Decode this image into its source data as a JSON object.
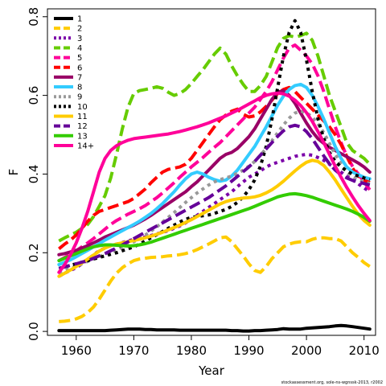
{
  "chart_data": {
    "type": "line",
    "xlabel": "Year",
    "ylabel": "F",
    "xlim": [
      1955,
      2012
    ],
    "ylim": [
      -0.01,
      0.82
    ],
    "x_ticks": [
      1960,
      1970,
      1980,
      1990,
      2000,
      2010
    ],
    "y_ticks": [
      0.0,
      0.2,
      0.4,
      0.6,
      0.8
    ],
    "legend_position": "top-left",
    "grid": false,
    "x": [
      1957,
      1958,
      1959,
      1960,
      1961,
      1962,
      1963,
      1964,
      1965,
      1966,
      1967,
      1968,
      1969,
      1970,
      1971,
      1972,
      1973,
      1974,
      1975,
      1976,
      1977,
      1978,
      1979,
      1980,
      1981,
      1982,
      1983,
      1984,
      1985,
      1986,
      1987,
      1988,
      1989,
      1990,
      1991,
      1992,
      1993,
      1994,
      1995,
      1996,
      1997,
      1998,
      1999,
      2000,
      2001,
      2002,
      2003,
      2004,
      2005,
      2006,
      2007,
      2008,
      2009,
      2010,
      2011
    ],
    "series": [
      {
        "name": "1",
        "color": "#000000",
        "dash": "solid",
        "values": [
          0.002,
          0.002,
          0.002,
          0.002,
          0.002,
          0.002,
          0.002,
          0.002,
          0.002,
          0.003,
          0.004,
          0.005,
          0.006,
          0.006,
          0.006,
          0.005,
          0.005,
          0.004,
          0.004,
          0.004,
          0.004,
          0.003,
          0.003,
          0.003,
          0.003,
          0.003,
          0.003,
          0.003,
          0.003,
          0.003,
          0.002,
          0.002,
          0.001,
          0.001,
          0.002,
          0.002,
          0.003,
          0.004,
          0.005,
          0.007,
          0.006,
          0.006,
          0.006,
          0.008,
          0.009,
          0.01,
          0.011,
          0.012,
          0.014,
          0.015,
          0.014,
          0.012,
          0.01,
          0.008,
          0.006
        ]
      },
      {
        "name": "2",
        "color": "#FFCC00",
        "dash": "dash",
        "values": [
          0.025,
          0.026,
          0.028,
          0.032,
          0.038,
          0.048,
          0.062,
          0.082,
          0.105,
          0.128,
          0.148,
          0.162,
          0.172,
          0.18,
          0.184,
          0.186,
          0.188,
          0.189,
          0.19,
          0.192,
          0.193,
          0.195,
          0.198,
          0.202,
          0.208,
          0.215,
          0.222,
          0.23,
          0.238,
          0.24,
          0.228,
          0.21,
          0.192,
          0.172,
          0.155,
          0.15,
          0.165,
          0.185,
          0.2,
          0.215,
          0.222,
          0.226,
          0.228,
          0.228,
          0.234,
          0.238,
          0.238,
          0.236,
          0.236,
          0.23,
          0.215,
          0.2,
          0.188,
          0.175,
          0.165
        ]
      },
      {
        "name": "3",
        "color": "#7B00A8",
        "dash": "dot",
        "values": [
          0.14,
          0.148,
          0.155,
          0.162,
          0.172,
          0.182,
          0.195,
          0.205,
          0.212,
          0.218,
          0.222,
          0.226,
          0.23,
          0.234,
          0.238,
          0.24,
          0.244,
          0.248,
          0.252,
          0.256,
          0.262,
          0.268,
          0.276,
          0.285,
          0.295,
          0.305,
          0.315,
          0.325,
          0.335,
          0.345,
          0.355,
          0.368,
          0.38,
          0.392,
          0.4,
          0.408,
          0.418,
          0.425,
          0.43,
          0.435,
          0.44,
          0.445,
          0.448,
          0.45,
          0.448,
          0.442,
          0.435,
          0.425,
          0.415,
          0.405,
          0.395,
          0.385,
          0.375,
          0.365,
          0.355
        ]
      },
      {
        "name": "4",
        "color": "#66CC00",
        "dash": "dash",
        "values": [
          0.23,
          0.238,
          0.245,
          0.252,
          0.262,
          0.272,
          0.292,
          0.318,
          0.345,
          0.39,
          0.45,
          0.515,
          0.57,
          0.605,
          0.612,
          0.615,
          0.618,
          0.622,
          0.618,
          0.608,
          0.6,
          0.605,
          0.615,
          0.63,
          0.648,
          0.665,
          0.685,
          0.705,
          0.72,
          0.705,
          0.675,
          0.65,
          0.628,
          0.61,
          0.61,
          0.625,
          0.648,
          0.685,
          0.722,
          0.745,
          0.752,
          0.748,
          0.752,
          0.758,
          0.74,
          0.7,
          0.65,
          0.6,
          0.56,
          0.52,
          0.48,
          0.46,
          0.45,
          0.44,
          0.425
        ]
      },
      {
        "name": "5",
        "color": "#FF0099",
        "dash": "dash",
        "values": [
          0.18,
          0.188,
          0.196,
          0.205,
          0.215,
          0.225,
          0.236,
          0.248,
          0.26,
          0.272,
          0.282,
          0.29,
          0.298,
          0.305,
          0.312,
          0.32,
          0.33,
          0.34,
          0.352,
          0.365,
          0.378,
          0.392,
          0.405,
          0.418,
          0.43,
          0.442,
          0.455,
          0.468,
          0.48,
          0.495,
          0.51,
          0.525,
          0.54,
          0.555,
          0.57,
          0.59,
          0.61,
          0.635,
          0.665,
          0.695,
          0.72,
          0.728,
          0.715,
          0.7,
          0.68,
          0.65,
          0.61,
          0.565,
          0.52,
          0.48,
          0.445,
          0.42,
          0.4,
          0.38,
          0.36
        ]
      },
      {
        "name": "6",
        "color": "#FF0000",
        "dash": "dash",
        "values": [
          0.21,
          0.222,
          0.232,
          0.245,
          0.262,
          0.28,
          0.295,
          0.305,
          0.31,
          0.315,
          0.32,
          0.325,
          0.33,
          0.338,
          0.35,
          0.362,
          0.378,
          0.392,
          0.405,
          0.412,
          0.415,
          0.418,
          0.425,
          0.44,
          0.46,
          0.48,
          0.5,
          0.52,
          0.538,
          0.55,
          0.56,
          0.565,
          0.552,
          0.545,
          0.548,
          0.558,
          0.572,
          0.588,
          0.605,
          0.615,
          0.62,
          0.61,
          0.595,
          0.58,
          0.565,
          0.55,
          0.535,
          0.52,
          0.5,
          0.475,
          0.445,
          0.415,
          0.395,
          0.385,
          0.378
        ]
      },
      {
        "name": "7",
        "color": "#990066",
        "dash": "solid",
        "values": [
          0.195,
          0.198,
          0.202,
          0.206,
          0.212,
          0.218,
          0.225,
          0.232,
          0.24,
          0.246,
          0.252,
          0.258,
          0.264,
          0.27,
          0.278,
          0.286,
          0.295,
          0.305,
          0.315,
          0.325,
          0.335,
          0.345,
          0.355,
          0.368,
          0.38,
          0.395,
          0.41,
          0.425,
          0.44,
          0.45,
          0.455,
          0.465,
          0.48,
          0.495,
          0.515,
          0.54,
          0.565,
          0.59,
          0.608,
          0.612,
          0.6,
          0.58,
          0.555,
          0.53,
          0.508,
          0.49,
          0.478,
          0.468,
          0.46,
          0.452,
          0.444,
          0.436,
          0.428,
          0.418,
          0.405
        ]
      },
      {
        "name": "8",
        "color": "#33CCFF",
        "dash": "solid",
        "values": [
          0.17,
          0.176,
          0.182,
          0.19,
          0.198,
          0.206,
          0.215,
          0.223,
          0.232,
          0.24,
          0.248,
          0.256,
          0.264,
          0.272,
          0.28,
          0.29,
          0.3,
          0.312,
          0.325,
          0.34,
          0.355,
          0.372,
          0.388,
          0.4,
          0.405,
          0.4,
          0.392,
          0.386,
          0.382,
          0.385,
          0.395,
          0.41,
          0.43,
          0.45,
          0.47,
          0.495,
          0.52,
          0.548,
          0.575,
          0.598,
          0.615,
          0.625,
          0.628,
          0.62,
          0.6,
          0.572,
          0.54,
          0.505,
          0.47,
          0.44,
          0.418,
          0.405,
          0.398,
          0.392,
          0.388
        ]
      },
      {
        "name": "9",
        "color": "#999999",
        "dash": "dot",
        "values": [
          0.15,
          0.155,
          0.16,
          0.166,
          0.172,
          0.178,
          0.184,
          0.19,
          0.196,
          0.202,
          0.208,
          0.214,
          0.22,
          0.228,
          0.236,
          0.245,
          0.255,
          0.266,
          0.278,
          0.29,
          0.302,
          0.315,
          0.328,
          0.34,
          0.352,
          0.362,
          0.372,
          0.38,
          0.386,
          0.39,
          0.395,
          0.402,
          0.41,
          0.42,
          0.432,
          0.448,
          0.465,
          0.485,
          0.505,
          0.525,
          0.542,
          0.555,
          0.56,
          0.556,
          0.545,
          0.528,
          0.505,
          0.478,
          0.45,
          0.425,
          0.405,
          0.392,
          0.385,
          0.38,
          0.376
        ]
      },
      {
        "name": "10",
        "color": "#000000",
        "dash": "dot",
        "values": [
          0.16,
          0.164,
          0.168,
          0.172,
          0.176,
          0.18,
          0.184,
          0.188,
          0.192,
          0.196,
          0.2,
          0.205,
          0.21,
          0.215,
          0.222,
          0.23,
          0.238,
          0.246,
          0.254,
          0.262,
          0.27,
          0.278,
          0.285,
          0.29,
          0.292,
          0.294,
          0.296,
          0.3,
          0.305,
          0.31,
          0.318,
          0.328,
          0.342,
          0.36,
          0.385,
          0.42,
          0.47,
          0.54,
          0.62,
          0.7,
          0.76,
          0.79,
          0.76,
          0.69,
          0.61,
          0.54,
          0.49,
          0.455,
          0.432,
          0.418,
          0.408,
          0.4,
          0.395,
          0.39,
          0.386
        ]
      },
      {
        "name": "11",
        "color": "#FFCC00",
        "dash": "solid",
        "values": [
          0.14,
          0.148,
          0.156,
          0.165,
          0.174,
          0.184,
          0.194,
          0.204,
          0.212,
          0.218,
          0.222,
          0.225,
          0.228,
          0.231,
          0.234,
          0.238,
          0.242,
          0.247,
          0.252,
          0.258,
          0.264,
          0.27,
          0.277,
          0.284,
          0.292,
          0.3,
          0.308,
          0.316,
          0.324,
          0.33,
          0.334,
          0.337,
          0.339,
          0.34,
          0.342,
          0.346,
          0.352,
          0.36,
          0.37,
          0.382,
          0.395,
          0.408,
          0.42,
          0.43,
          0.435,
          0.432,
          0.422,
          0.405,
          0.385,
          0.362,
          0.34,
          0.318,
          0.298,
          0.282,
          0.27
        ]
      },
      {
        "name": "12",
        "color": "#660099",
        "dash": "dash",
        "values": [
          0.16,
          0.164,
          0.168,
          0.172,
          0.176,
          0.18,
          0.186,
          0.192,
          0.198,
          0.205,
          0.212,
          0.22,
          0.228,
          0.236,
          0.244,
          0.252,
          0.26,
          0.268,
          0.276,
          0.284,
          0.292,
          0.3,
          0.308,
          0.316,
          0.324,
          0.332,
          0.34,
          0.35,
          0.36,
          0.37,
          0.382,
          0.394,
          0.406,
          0.418,
          0.432,
          0.448,
          0.464,
          0.48,
          0.496,
          0.51,
          0.52,
          0.524,
          0.52,
          0.508,
          0.49,
          0.468,
          0.446,
          0.426,
          0.41,
          0.398,
          0.39,
          0.384,
          0.38,
          0.376,
          0.372
        ]
      },
      {
        "name": "13",
        "color": "#33CC00",
        "dash": "solid",
        "values": [
          0.18,
          0.186,
          0.192,
          0.198,
          0.204,
          0.21,
          0.215,
          0.218,
          0.22,
          0.22,
          0.219,
          0.218,
          0.217,
          0.218,
          0.22,
          0.223,
          0.227,
          0.232,
          0.237,
          0.242,
          0.247,
          0.252,
          0.257,
          0.262,
          0.267,
          0.272,
          0.277,
          0.282,
          0.287,
          0.292,
          0.297,
          0.302,
          0.307,
          0.312,
          0.318,
          0.324,
          0.33,
          0.336,
          0.342,
          0.346,
          0.349,
          0.35,
          0.348,
          0.345,
          0.341,
          0.336,
          0.331,
          0.326,
          0.321,
          0.316,
          0.311,
          0.305,
          0.298,
          0.29,
          0.28
        ]
      },
      {
        "name": "14+",
        "color": "#FF0099",
        "dash": "solid",
        "values": [
          0.15,
          0.17,
          0.195,
          0.225,
          0.262,
          0.305,
          0.355,
          0.405,
          0.44,
          0.46,
          0.472,
          0.48,
          0.486,
          0.49,
          0.492,
          0.494,
          0.496,
          0.498,
          0.5,
          0.502,
          0.505,
          0.508,
          0.512,
          0.516,
          0.52,
          0.525,
          0.53,
          0.536,
          0.542,
          0.548,
          0.555,
          0.562,
          0.57,
          0.578,
          0.586,
          0.594,
          0.6,
          0.604,
          0.606,
          0.604,
          0.598,
          0.588,
          0.574,
          0.556,
          0.534,
          0.508,
          0.48,
          0.45,
          0.42,
          0.392,
          0.366,
          0.342,
          0.32,
          0.3,
          0.282
        ]
      }
    ]
  },
  "credit": "stockassessment.org, sole-ns-wgnssk-2013, r2002"
}
